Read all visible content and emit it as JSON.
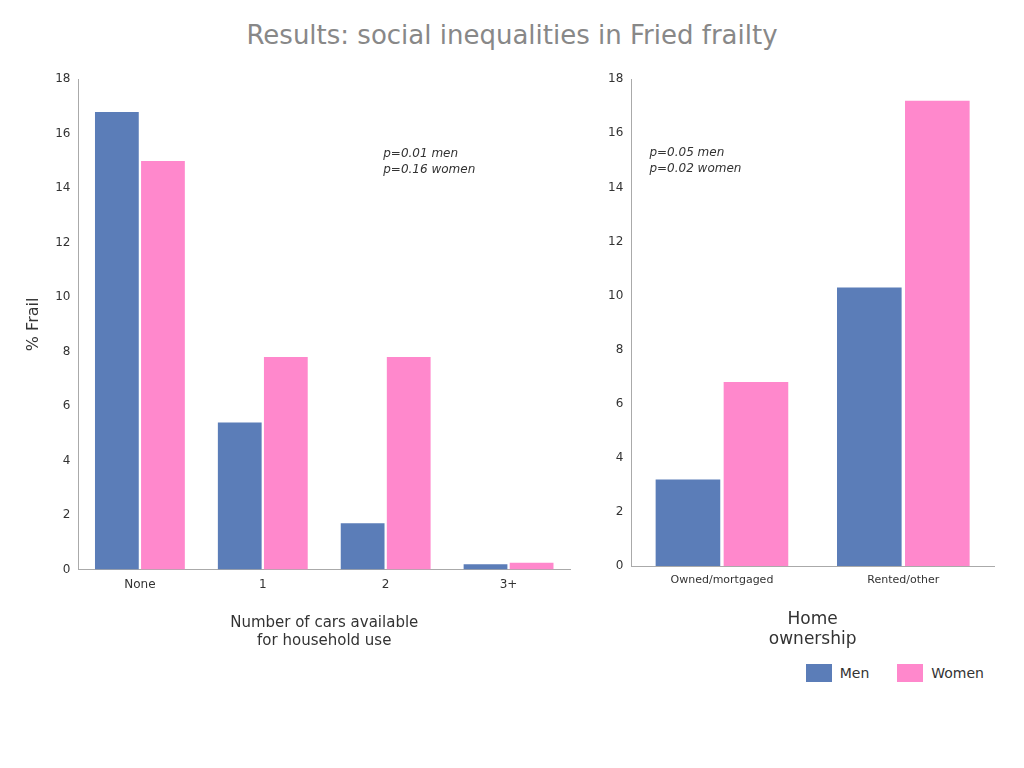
{
  "title": "Results: social inequalities in Fried frailty",
  "legend": "lower right",
  "chart_data": [
    {
      "type": "bar",
      "categories": [
        "None",
        "1",
        "2",
        "3+"
      ],
      "series": [
        {
          "name": "Men",
          "color": "#5B7DB8",
          "values": [
            16.8,
            5.4,
            1.7,
            0.2
          ]
        },
        {
          "name": "Women",
          "color": "#FF88CC",
          "values": [
            15.0,
            7.8,
            7.8,
            0.25
          ]
        }
      ],
      "xlabel": "Number of cars available\nfor household use",
      "ylabel": "% Frail",
      "ylim": [
        0,
        18
      ],
      "yticks": [
        0,
        2,
        4,
        6,
        8,
        10,
        12,
        14,
        16,
        18
      ],
      "grid": false,
      "annotation": "p=0.01 men\np=0.16 women"
    },
    {
      "type": "bar",
      "categories": [
        "Owned/mortgaged",
        "Rented/other"
      ],
      "series": [
        {
          "name": "Men",
          "color": "#5B7DB8",
          "values": [
            3.2,
            10.3
          ]
        },
        {
          "name": "Women",
          "color": "#FF88CC",
          "values": [
            6.8,
            17.2
          ]
        }
      ],
      "xlabel": "Home\nownership",
      "ylim": [
        0,
        18
      ],
      "yticks": [
        0,
        2,
        4,
        6,
        8,
        10,
        12,
        14,
        16,
        18
      ],
      "grid": false,
      "annotation": "p=0.05 men\np=0.02 women"
    }
  ]
}
